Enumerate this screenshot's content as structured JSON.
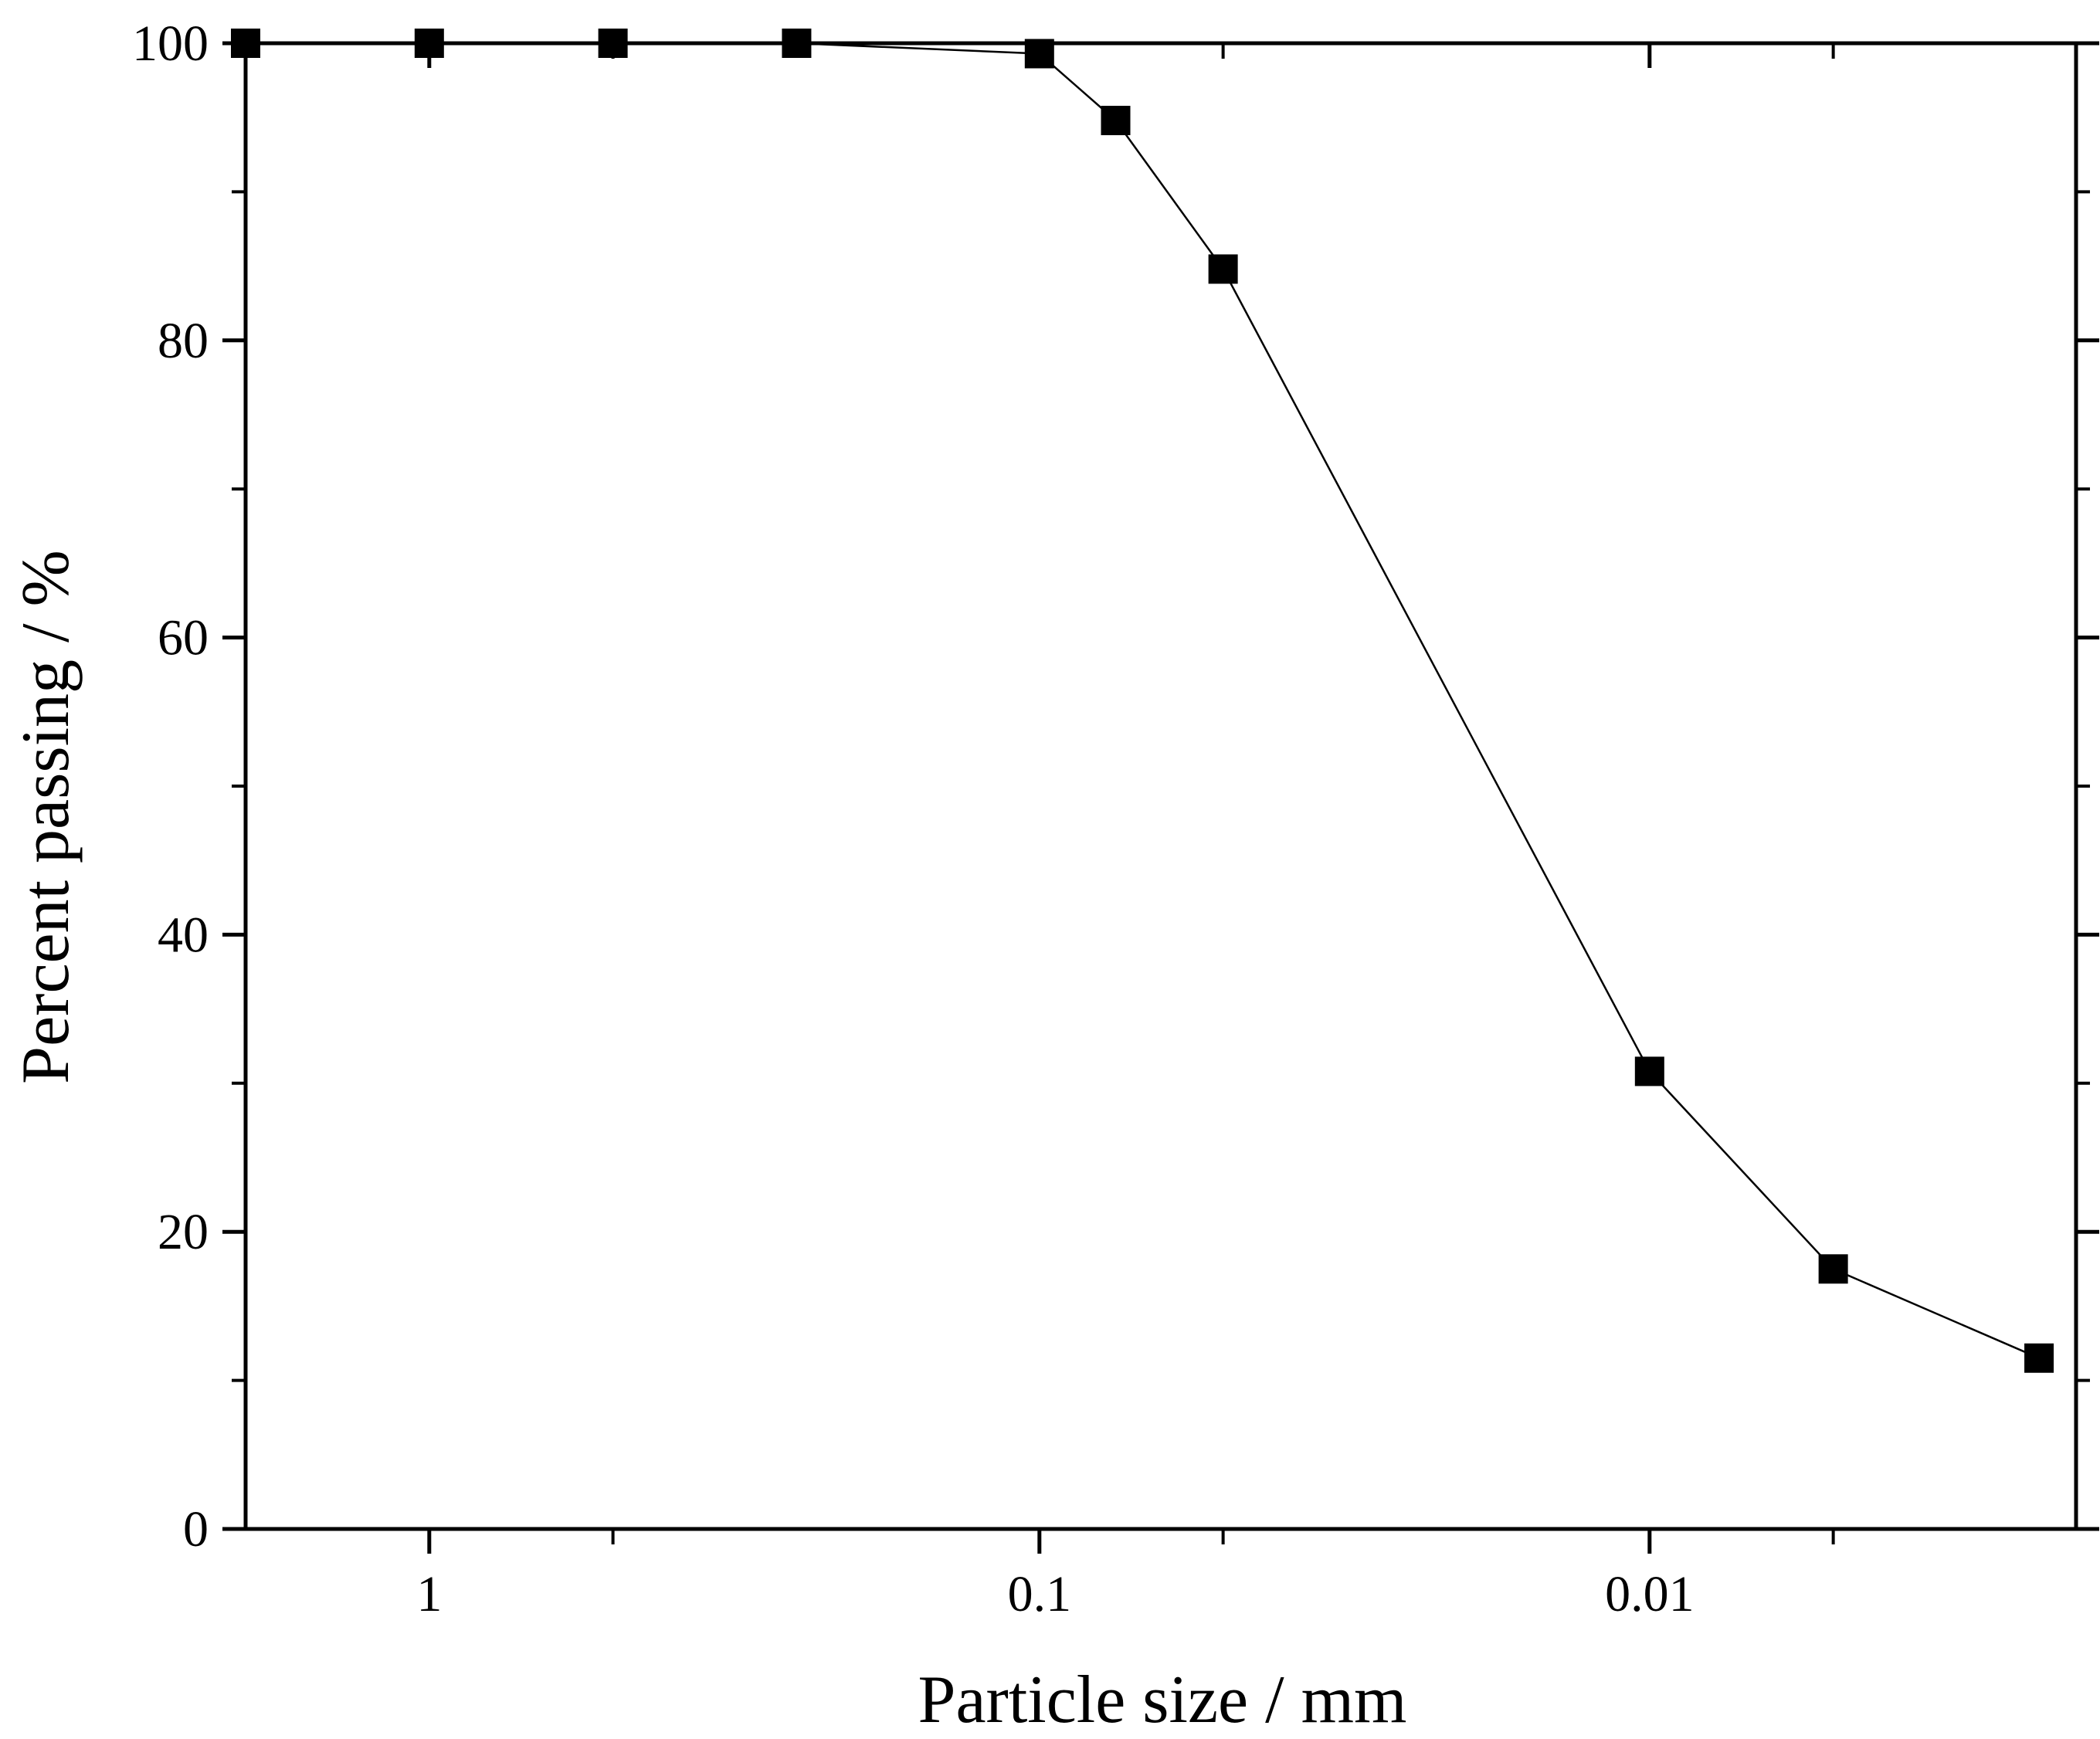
{
  "chart_data": {
    "type": "line",
    "xlabel": "Particle size / mm",
    "ylabel": "Percent passing / %",
    "x_scale": "log",
    "x_axis_reversed": true,
    "xlim": [
      2,
      0.002
    ],
    "ylim": [
      0,
      100
    ],
    "x_ticks": [
      {
        "value": 1,
        "label": "1"
      },
      {
        "value": 0.1,
        "label": "0.1"
      },
      {
        "value": 0.01,
        "label": "0.01"
      }
    ],
    "y_ticks": [
      {
        "value": 0,
        "label": "0"
      },
      {
        "value": 20,
        "label": "20"
      },
      {
        "value": 40,
        "label": "40"
      },
      {
        "value": 60,
        "label": "60"
      },
      {
        "value": 80,
        "label": "80"
      },
      {
        "value": 100,
        "label": "100"
      }
    ],
    "grid": false,
    "legend": "none",
    "marker": "square",
    "colors": {
      "series": "#000000",
      "axis": "#000000",
      "background": "#ffffff"
    },
    "series": [
      {
        "points": [
          {
            "x": 2,
            "y": 100
          },
          {
            "x": 1,
            "y": 100
          },
          {
            "x": 0.5,
            "y": 100
          },
          {
            "x": 0.25,
            "y": 100
          },
          {
            "x": 0.1,
            "y": 99.3
          },
          {
            "x": 0.075,
            "y": 94.8
          },
          {
            "x": 0.05,
            "y": 84.8
          },
          {
            "x": 0.01,
            "y": 30.8
          },
          {
            "x": 0.005,
            "y": 17.5
          },
          {
            "x": 0.0023,
            "y": 11.5
          }
        ]
      }
    ]
  }
}
